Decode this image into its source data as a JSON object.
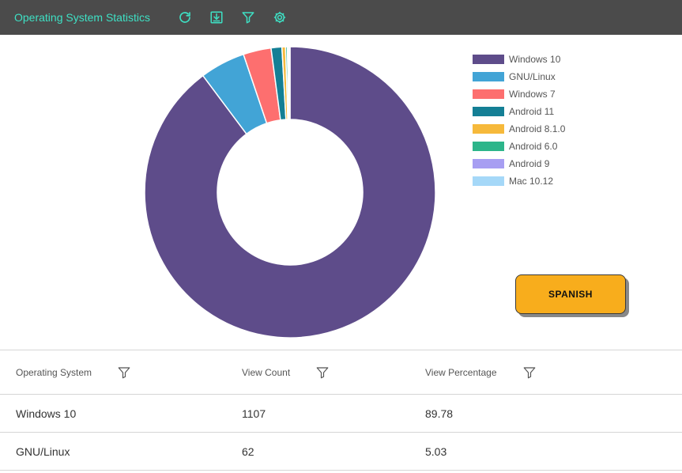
{
  "header": {
    "title": "Operating System Statistics",
    "icons": [
      "refresh-icon",
      "download-icon",
      "filter-icon",
      "gear-icon"
    ],
    "accent_color": "#3ee0c4",
    "background_color": "#4b4b4b"
  },
  "chart_data": {
    "type": "pie",
    "style": "donut",
    "legend_position": "right",
    "categories": [
      "Windows 10",
      "GNU/Linux",
      "Windows 7",
      "Android 11",
      "Android 8.1.0",
      "Android 6.0",
      "Android 9",
      "Mac 10.12"
    ],
    "values": [
      89.78,
      5.03,
      3.1,
      1.2,
      0.4,
      0.2,
      0.15,
      0.14
    ],
    "colors": [
      "#5e4c8a",
      "#42a4d6",
      "#fd6f6f",
      "#147f95",
      "#f6b93b",
      "#2db58a",
      "#a79ef2",
      "#a5d8f8"
    ]
  },
  "language_button": {
    "label": "SPANISH",
    "color": "#f8ad1c"
  },
  "table": {
    "columns": [
      "Operating System",
      "View Count",
      "View Percentage"
    ],
    "rows": [
      [
        "Windows 10",
        "1107",
        "89.78"
      ],
      [
        "GNU/Linux",
        "62",
        "5.03"
      ]
    ]
  }
}
